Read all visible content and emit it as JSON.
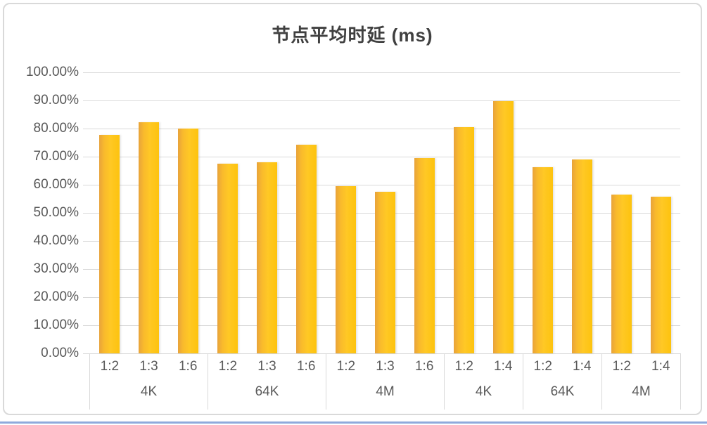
{
  "chart_data": {
    "type": "bar",
    "title": "节点平均时延 (ms)",
    "legend": "none",
    "grid": true,
    "y_axis": {
      "min": 0,
      "max": 100,
      "step": 10,
      "tick_labels": [
        "0.00%",
        "10.00%",
        "20.00%",
        "30.00%",
        "40.00%",
        "50.00%",
        "60.00%",
        "70.00%",
        "80.00%",
        "90.00%",
        "100.00%"
      ]
    },
    "x_axis": {
      "groups": [
        {
          "label": "4K",
          "categories": [
            "1:2",
            "1:3",
            "1:6"
          ],
          "values": [
            77.8,
            82.2,
            80.0
          ]
        },
        {
          "label": "64K",
          "categories": [
            "1:2",
            "1:3",
            "1:6"
          ],
          "values": [
            67.4,
            68.0,
            74.2
          ]
        },
        {
          "label": "4M",
          "categories": [
            "1:2",
            "1:3",
            "1:6"
          ],
          "values": [
            59.5,
            57.4,
            69.4
          ]
        },
        {
          "label": "4K",
          "categories": [
            "1:2",
            "1:4"
          ],
          "values": [
            80.4,
            89.8
          ]
        },
        {
          "label": "64K",
          "categories": [
            "1:2",
            "1:4"
          ],
          "values": [
            66.3,
            69.0
          ]
        },
        {
          "label": "4M",
          "categories": [
            "1:2",
            "1:4"
          ],
          "values": [
            56.5,
            55.7
          ]
        }
      ]
    },
    "colors": {
      "bar_gradient": [
        "#e8a33b",
        "#f9ba2c",
        "#ffc825",
        "#fdc30e"
      ],
      "gridline": "#d9d9d9",
      "axis_text": "#595959",
      "title_text": "#404040",
      "frame_border": "#d9d9d9",
      "group_separator": "#d9d9d9",
      "bottom_edge_line": "#8faadc"
    }
  }
}
